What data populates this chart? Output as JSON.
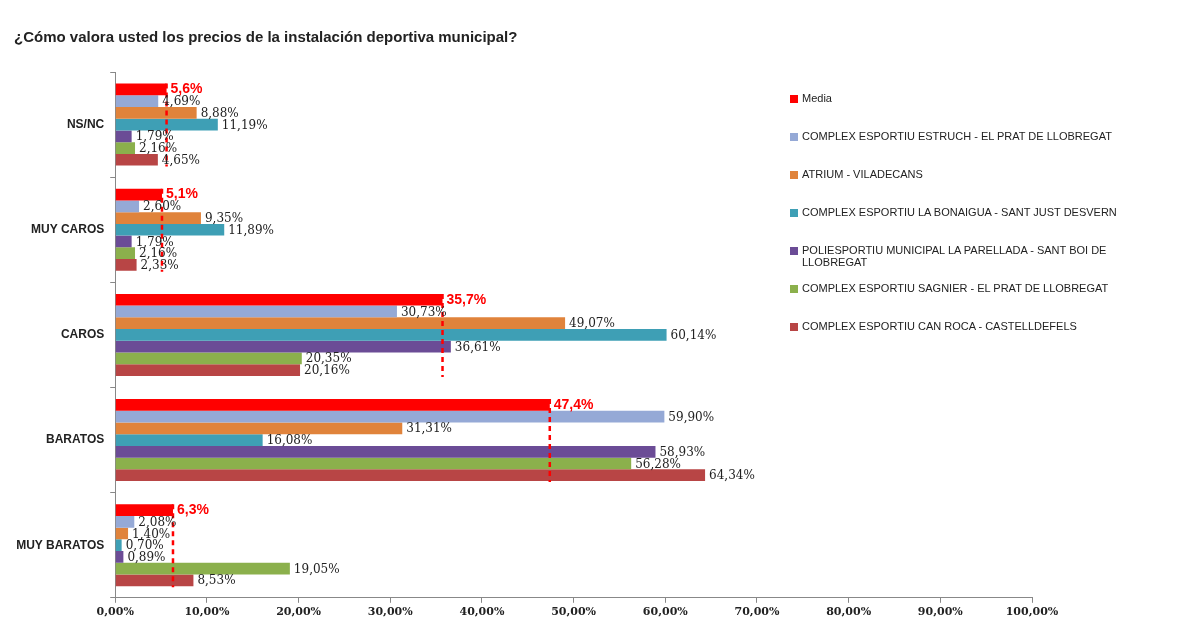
{
  "chart_data": {
    "type": "bar",
    "orientation": "horizontal",
    "title": "¿Cómo valora usted los precios de la instalación deportiva municipal?",
    "categories": [
      "NS/NC",
      "MUY CAROS",
      "CAROS",
      "BARATOS",
      "MUY BARATOS"
    ],
    "xlim": [
      0,
      100
    ],
    "xticks": [
      {
        "value": 0,
        "label": "0,00%"
      },
      {
        "value": 10,
        "label": "10,00%"
      },
      {
        "value": 20,
        "label": "20,00%"
      },
      {
        "value": 30,
        "label": "30,00%"
      },
      {
        "value": 40,
        "label": "40,00%"
      },
      {
        "value": 50,
        "label": "50,00%"
      },
      {
        "value": 60,
        "label": "60,00%"
      },
      {
        "value": 70,
        "label": "70,00%"
      },
      {
        "value": 80,
        "label": "80,00%"
      },
      {
        "value": 90,
        "label": "90,00%"
      },
      {
        "value": 100,
        "label": "100,00%"
      }
    ],
    "legend": "right",
    "series": [
      {
        "name": "Media",
        "color": "#ff0000",
        "values": [
          5.6,
          5.1,
          35.7,
          47.4,
          6.3
        ],
        "value_labels": [
          "5,6%",
          "5,1%",
          "35,7%",
          "47,4%",
          "6,3%"
        ]
      },
      {
        "name": "COMPLEX ESPORTIU ESTRUCH - EL PRAT DE LLOBREGAT",
        "color": "#95a9d6",
        "values": [
          4.69,
          2.6,
          30.73,
          59.9,
          2.08
        ],
        "value_labels": [
          "4,69%",
          "2,60%",
          "30,73%",
          "59,90%",
          "2,08%"
        ]
      },
      {
        "name": "ATRIUM - VILADECANS",
        "color": "#e0833b",
        "values": [
          8.88,
          9.35,
          49.07,
          31.31,
          1.4
        ],
        "value_labels": [
          "8,88%",
          "9,35%",
          "49,07%",
          "31,31%",
          "1,40%"
        ]
      },
      {
        "name": "COMPLEX ESPORTIU LA BONAIGUA - SANT JUST DESVERN",
        "color": "#3e9fb5",
        "values": [
          11.19,
          11.89,
          60.14,
          16.08,
          0.7
        ],
        "value_labels": [
          "11,19%",
          "11,89%",
          "60,14%",
          "16,08%",
          "0,70%"
        ]
      },
      {
        "name": "POLIESPORTIU MUNICIPAL LA PARELLADA - SANT BOI DE LLOBREGAT",
        "color": "#6b4c96",
        "values": [
          1.79,
          1.79,
          36.61,
          58.93,
          0.89
        ],
        "value_labels": [
          "1,79%",
          "1,79%",
          "36,61%",
          "58,93%",
          "0,89%"
        ]
      },
      {
        "name": "COMPLEX ESPORTIU SAGNIER - EL PRAT DE LLOBREGAT",
        "color": "#8bb04c",
        "values": [
          2.16,
          2.16,
          20.35,
          56.28,
          19.05
        ],
        "value_labels": [
          "2,16%",
          "2,16%",
          "20,35%",
          "56,28%",
          "19,05%"
        ]
      },
      {
        "name": "COMPLEX ESPORTIU CAN ROCA - CASTELLDEFELS",
        "color": "#b84545",
        "values": [
          4.65,
          2.33,
          20.16,
          64.34,
          8.53
        ],
        "value_labels": [
          "4,65%",
          "2,33%",
          "20,16%",
          "64,34%",
          "8,53%"
        ]
      }
    ]
  }
}
